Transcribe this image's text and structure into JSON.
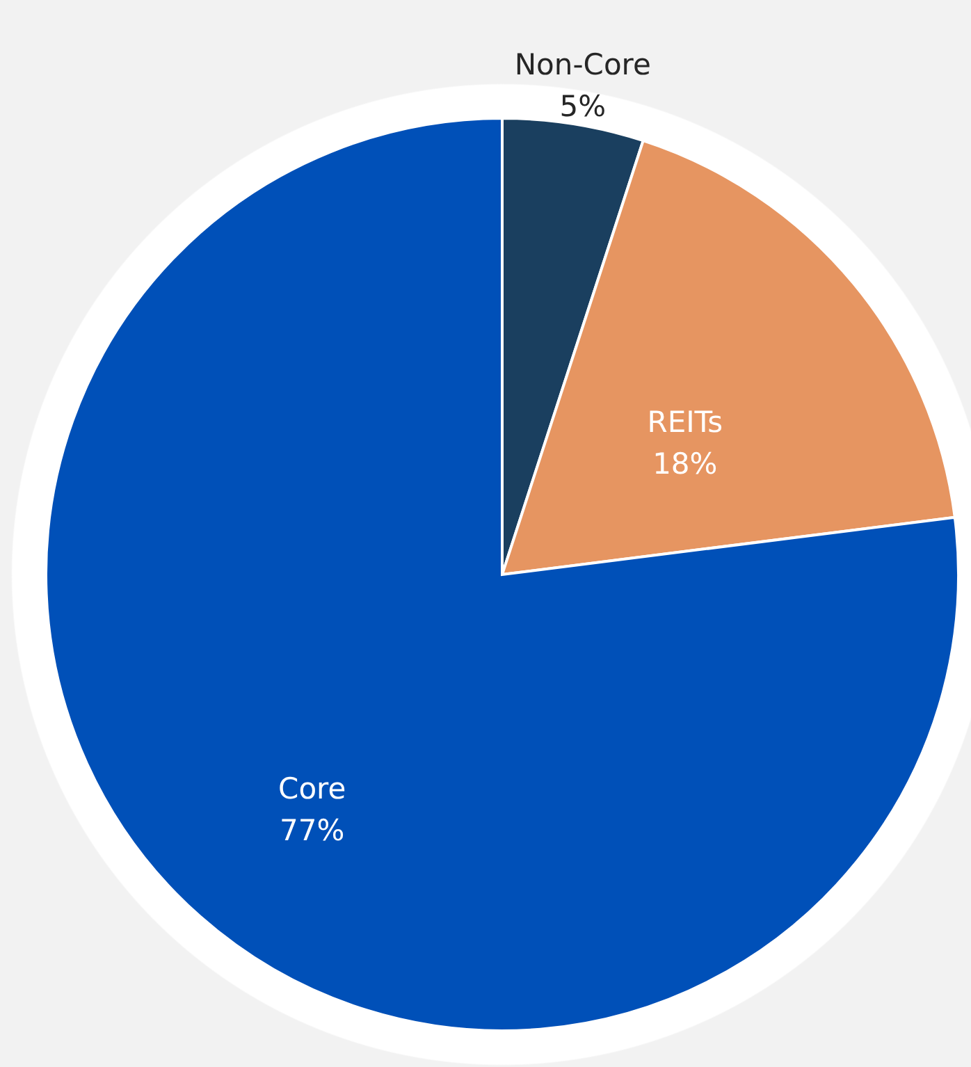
{
  "chart_data": {
    "type": "pie",
    "categories": [
      "Non-Core",
      "REITs",
      "Core"
    ],
    "values": [
      5,
      18,
      77
    ],
    "colors": [
      "#1a3f5f",
      "#e69561",
      "#0050b8"
    ],
    "value_labels": [
      "5%",
      "18%",
      "77%"
    ]
  }
}
